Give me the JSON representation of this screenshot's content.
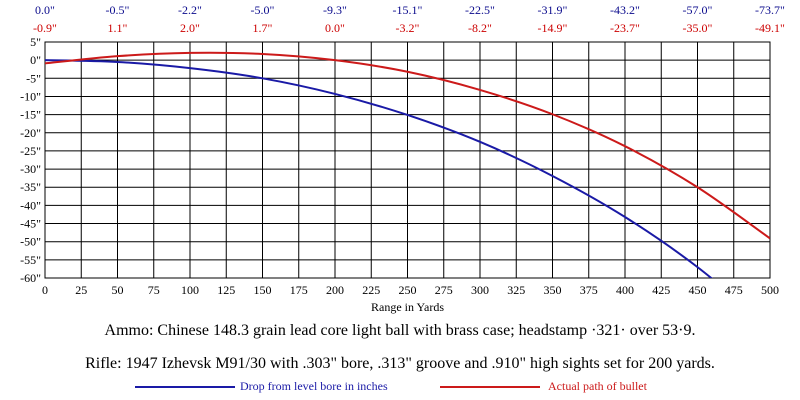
{
  "chart_data": {
    "type": "line",
    "xlabel": "Range in Yards",
    "ylabel": "",
    "xlim": [
      0,
      500
    ],
    "ylim": [
      -60,
      5
    ],
    "grid": true,
    "x_ticks": [
      0,
      25,
      50,
      75,
      100,
      125,
      150,
      175,
      200,
      225,
      250,
      275,
      300,
      325,
      350,
      375,
      400,
      425,
      450,
      475,
      500
    ],
    "y_ticks": [
      5,
      0,
      -5,
      -10,
      -15,
      -20,
      -25,
      -30,
      -35,
      -40,
      -45,
      -50,
      -55,
      -60
    ],
    "y_tick_labels": [
      "5\"",
      "0\"",
      "-5\"",
      "-10\"",
      "-15\"",
      "-20\"",
      "-25\"",
      "-30\"",
      "-35\"",
      "-40\"",
      "-45\"",
      "-50\"",
      "-55\"",
      "-60\""
    ],
    "top_labels_x": [
      0,
      50,
      100,
      150,
      200,
      250,
      300,
      350,
      400,
      450,
      500
    ],
    "top_labels_drop": [
      "0.0\"",
      "-0.5\"",
      "-2.2\"",
      "-5.0\"",
      "-9.3\"",
      "-15.1\"",
      "-22.5\"",
      "-31.9\"",
      "-43.2\"",
      "-57.0\"",
      "-73.7\""
    ],
    "top_labels_path": [
      "-0.9\"",
      "1.1\"",
      "2.0\"",
      "1.7\"",
      "0.0\"",
      "-3.2\"",
      "-8.2\"",
      "-14.9\"",
      "-23.7\"",
      "-35.0\"",
      "-49.1\""
    ],
    "x": [
      0,
      50,
      100,
      150,
      200,
      250,
      300,
      350,
      400,
      450,
      500
    ],
    "series": [
      {
        "name": "Drop from level bore in inches",
        "color": "#1a1aa6",
        "values": [
          0.0,
          -0.5,
          -2.2,
          -5.0,
          -9.3,
          -15.1,
          -22.5,
          -31.9,
          -43.2,
          -57.0,
          -73.7
        ]
      },
      {
        "name": "Actual path of bullet",
        "color": "#cc1a1a",
        "values": [
          -0.9,
          1.1,
          2.0,
          1.7,
          0.0,
          -3.2,
          -8.2,
          -14.9,
          -23.7,
          -35.0,
          -49.1
        ]
      }
    ],
    "label_colors": {
      "drop": "#0a0a8c",
      "path": "#cc0000"
    }
  },
  "captions": {
    "ammo": "Ammo:  Chinese 148.3 grain lead core light ball with brass case; headstamp ·321· over 53·9.",
    "rifle": "Rifle:  1947 Izhevsk M91/30 with .303\" bore, .313\" groove and .910\" high sights set for 200 yards."
  },
  "legend": {
    "drop_label": "Drop from level bore in inches",
    "path_label": "Actual path of bullet"
  }
}
